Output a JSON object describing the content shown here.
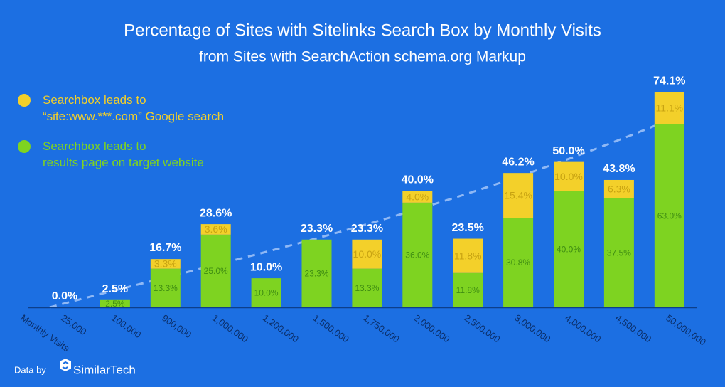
{
  "chart_data": {
    "type": "stacked-bar",
    "title": "Percentage of Sites with Sitelinks Search Box by Monthly Visits",
    "subtitle": "from Sites with SearchAction schema.org Markup",
    "x_label": "Monthly Visits",
    "categories": [
      "25,000",
      "100,000",
      "900,000",
      "1,000,000",
      "1,200,000",
      "1,500,000",
      "1,750,000",
      "2,000,000",
      "2,500,000",
      "3,000,000",
      "4,000,000",
      "4,500,000",
      "50,000,000"
    ],
    "series": [
      {
        "name": "Searchbox leads to\nresults page on target website",
        "color": "#7ed321",
        "values": [
          null,
          2.5,
          13.3,
          25.0,
          10.0,
          23.3,
          13.3,
          36.0,
          11.8,
          30.8,
          40.0,
          37.5,
          63.0
        ],
        "value_labels": [
          null,
          "2.5%",
          "13.3%",
          "25.0%",
          "10.0%",
          "23.3%",
          "13.3%",
          "36.0%",
          "11.8%",
          "30.8%",
          "40.0%",
          "37.5%",
          "63.0%"
        ]
      },
      {
        "name": "Searchbox leads to\n“site:www.***.com” Google search",
        "color": "#f3d02a",
        "values": [
          null,
          null,
          3.3,
          3.6,
          null,
          null,
          10.0,
          4.0,
          11.8,
          15.4,
          10.0,
          6.3,
          11.1
        ],
        "value_labels": [
          null,
          null,
          "3.3%",
          "3.6%",
          null,
          null,
          "10.0%",
          "4.0%",
          "11.8%",
          "15.4%",
          "10.0%",
          "6.3%",
          "11.1%"
        ]
      }
    ],
    "totals": {
      "values": [
        0.0,
        2.5,
        16.7,
        28.6,
        10.0,
        23.3,
        23.3,
        40.0,
        23.5,
        46.2,
        50.0,
        43.8,
        74.1
      ],
      "value_labels": [
        "0.0%",
        "2.5%",
        "16.7%",
        "28.6%",
        "10.0%",
        "23.3%",
        "23.3%",
        "40.0%",
        "23.5%",
        "46.2%",
        "50.0%",
        "43.8%",
        "74.1%"
      ]
    },
    "ylim": [
      0,
      80
    ]
  },
  "footer": {
    "prefix": "Data by",
    "brand": "SimilarTech"
  }
}
